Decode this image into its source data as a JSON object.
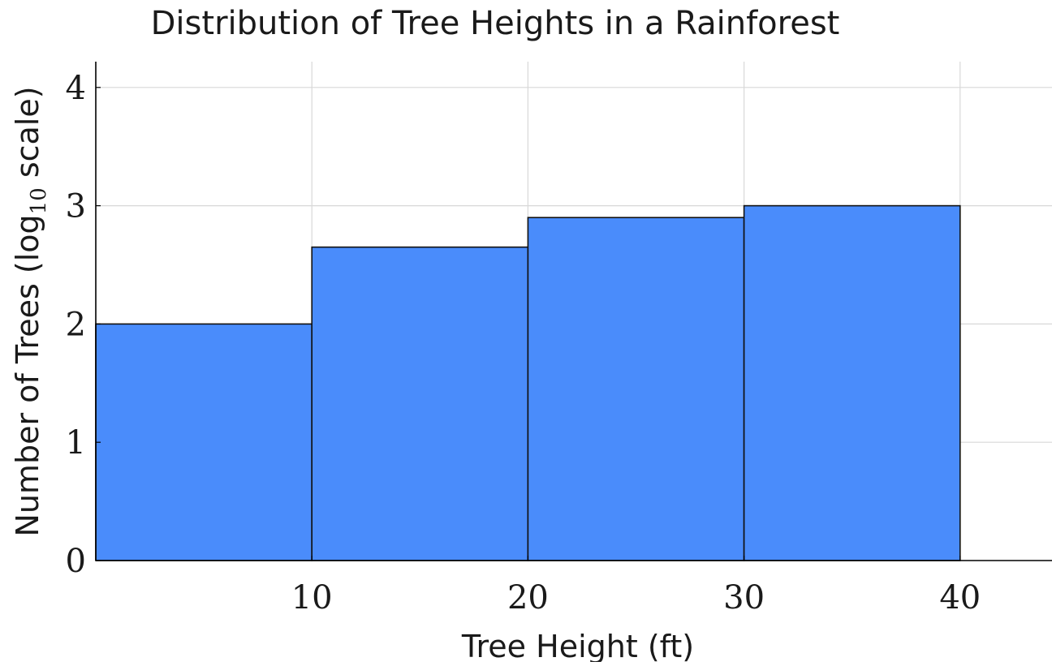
{
  "chart_data": {
    "type": "bar",
    "title": "Distribution of Tree Heights in a Rainforest",
    "xlabel": "Tree Height (ft)",
    "ylabel": {
      "prefix": "Number of Trees (log",
      "subscript": "10",
      "suffix": " scale)"
    },
    "bins": [
      {
        "x_start": 0,
        "x_end": 10,
        "value": 2.0
      },
      {
        "x_start": 10,
        "x_end": 20,
        "value": 2.65
      },
      {
        "x_start": 20,
        "x_end": 30,
        "value": 2.9
      },
      {
        "x_start": 30,
        "x_end": 40,
        "value": 3.0
      }
    ],
    "x_ticks": [
      {
        "value": 10,
        "label": "10"
      },
      {
        "value": 20,
        "label": "20"
      },
      {
        "value": 30,
        "label": "30"
      },
      {
        "value": 40,
        "label": "40"
      }
    ],
    "y_ticks": [
      {
        "value": 0,
        "label": "0"
      },
      {
        "value": 1,
        "label": "1"
      },
      {
        "value": 2,
        "label": "2"
      },
      {
        "value": 3,
        "label": "3"
      },
      {
        "value": 4,
        "label": "4"
      }
    ],
    "xlim": [
      0,
      45
    ],
    "ylim": [
      0,
      4.2
    ],
    "grid": true,
    "bar_color": "#4a8cfb",
    "bar_edge_color": "#111111"
  }
}
